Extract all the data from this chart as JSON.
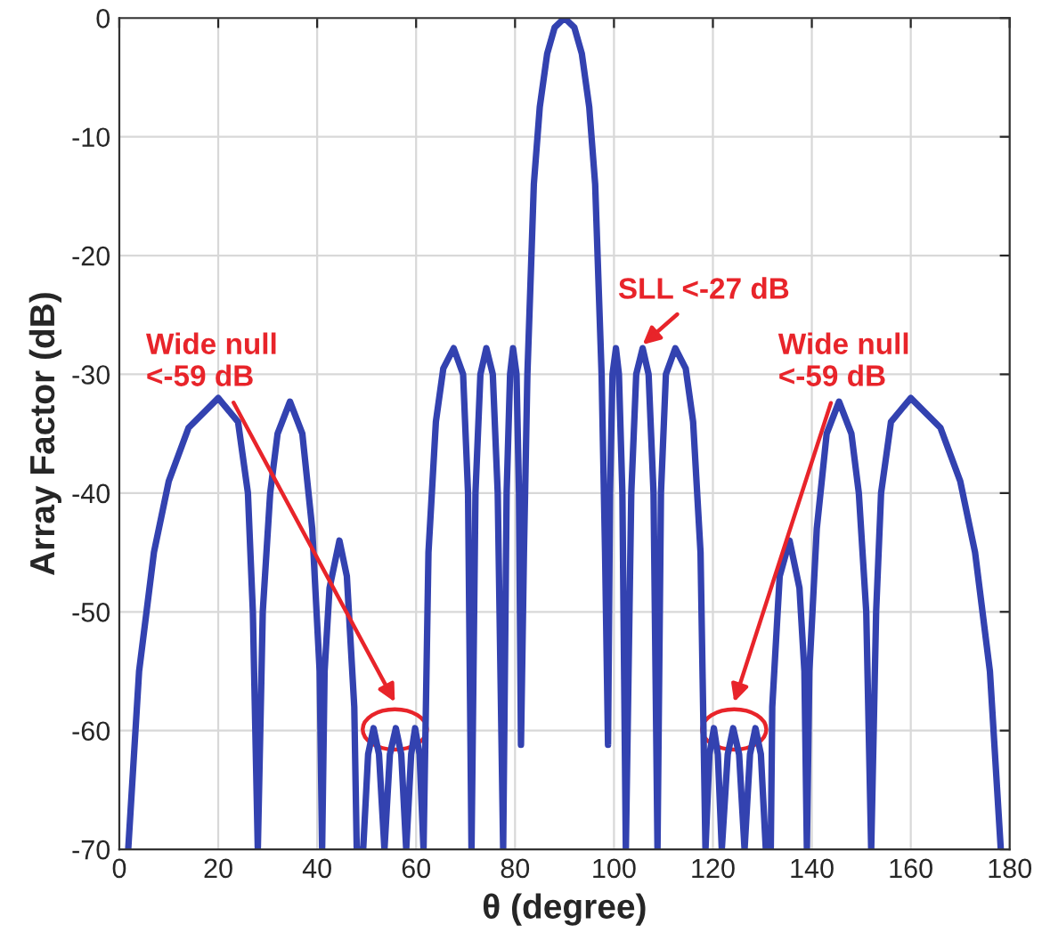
{
  "chart_data": {
    "type": "line",
    "xlabel": "θ (degree)",
    "ylabel": "Array Factor (dB)",
    "xlim": [
      0,
      180
    ],
    "ylim": [
      -70,
      0
    ],
    "xticks": [
      0,
      20,
      40,
      60,
      80,
      100,
      120,
      140,
      160,
      180
    ],
    "yticks": [
      -70,
      -60,
      -50,
      -40,
      -30,
      -20,
      -10,
      0
    ],
    "grid": true,
    "legend": false,
    "line_style": "solid",
    "marker": "none",
    "series": [
      {
        "color": "#3342b0",
        "x": [
          1.8,
          4,
          7,
          10,
          14,
          20,
          24,
          26,
          27,
          28,
          29,
          30.5,
          32,
          34.5,
          37,
          39,
          40.5,
          41,
          41.5,
          42.5,
          44.5,
          46,
          47.5,
          48,
          49.3,
          50.3,
          51.4,
          52.5,
          53.6,
          54.7,
          55.9,
          57,
          58,
          59,
          59.8,
          60.7,
          61.5,
          62.5,
          64,
          65.5,
          67.6,
          69.5,
          70.5,
          71.2,
          72,
          73,
          74.2,
          75.5,
          76.5,
          77.6,
          78.3,
          79,
          79.6,
          80.3,
          80.8,
          81.2,
          81.8,
          82.5,
          83.8,
          85,
          86.5,
          88,
          90,
          92,
          93.5,
          95,
          96.2,
          97.5,
          98.2,
          98.8,
          99.2,
          99.7,
          100.4,
          101,
          101.7,
          102.4,
          103.5,
          104.5,
          105.8,
          107,
          108,
          108.8,
          109.5,
          110.5,
          112.4,
          114.5,
          116,
          117.5,
          118.5,
          119.3,
          120.2,
          121,
          121.8,
          123,
          124.1,
          125.3,
          126.4,
          127.5,
          128.6,
          129.7,
          130.7,
          131.7,
          132,
          133.5,
          135.5,
          137.5,
          138.5,
          139,
          139.5,
          141,
          143,
          145.5,
          148,
          149.5,
          151,
          152,
          153,
          154,
          156,
          160,
          166,
          170,
          173,
          176,
          178.2
        ],
        "values": [
          -70,
          -55,
          -45,
          -39,
          -34.5,
          -32,
          -34,
          -40,
          -50,
          -70,
          -50,
          -40,
          -35,
          -32.3,
          -35,
          -43,
          -55,
          -70,
          -55,
          -48,
          -44,
          -47,
          -58,
          -70,
          -70,
          -62,
          -59.8,
          -62,
          -70,
          -62,
          -59.8,
          -62,
          -70,
          -62,
          -59.8,
          -62,
          -70,
          -45,
          -34,
          -29.5,
          -27.8,
          -30,
          -40,
          -70,
          -40,
          -30,
          -27.8,
          -30,
          -40,
          -70,
          -40,
          -30,
          -27.8,
          -30,
          -40,
          -61.2,
          -45,
          -30,
          -14,
          -7.5,
          -3,
          -0.8,
          0,
          -0.8,
          -3,
          -7.5,
          -14,
          -30,
          -45,
          -61.2,
          -40,
          -30,
          -27.8,
          -30,
          -40,
          -70,
          -40,
          -30,
          -27.8,
          -30,
          -40,
          -70,
          -40,
          -30,
          -27.8,
          -29.5,
          -34,
          -45,
          -70,
          -62,
          -59.8,
          -62,
          -70,
          -62,
          -59.8,
          -62,
          -70,
          -62,
          -59.8,
          -62,
          -70,
          -70,
          -58,
          -47,
          -44,
          -48,
          -55,
          -70,
          -55,
          -43,
          -35,
          -32.3,
          -35,
          -40,
          -50,
          -70,
          -50,
          -40,
          -34,
          -32,
          -34.5,
          -39,
          -45,
          -55,
          -70
        ]
      }
    ],
    "annotations": [
      {
        "text": "Wide null\n<-59 dB",
        "x": 55.7,
        "y": -57.6
      },
      {
        "text": "SLL <-27 dB",
        "x": 105.8,
        "y": -27.8
      },
      {
        "text": "Wide null\n<-59 dB",
        "x": 124.3,
        "y": -57.6
      }
    ]
  }
}
